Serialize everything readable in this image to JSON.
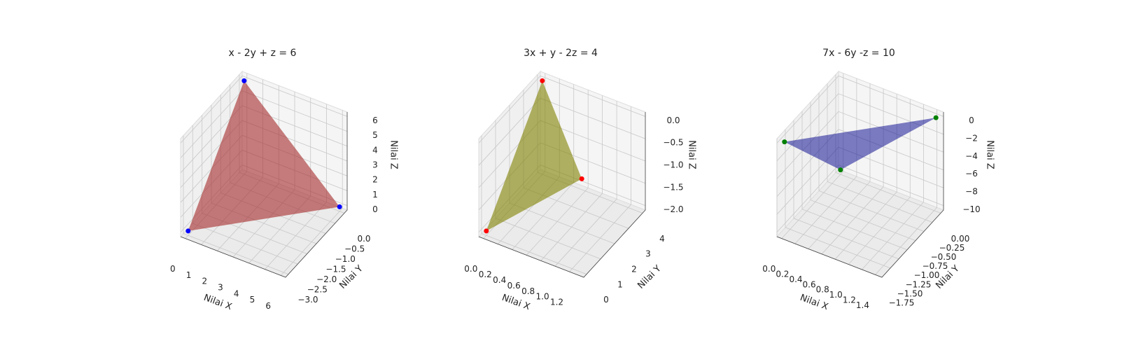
{
  "chart_data": [
    {
      "type": "plane3d",
      "title": "x - 2y + z = 6",
      "xlabel": "Nilai X",
      "ylabel": "Nilai Y",
      "zlabel": "Nilai Z",
      "x": [
        6,
        0,
        0
      ],
      "y": [
        0,
        -3,
        0
      ],
      "z": [
        0,
        0,
        6
      ],
      "color": "#a52a2a",
      "alpha": 0.6,
      "point_color": "blue",
      "xlim": [
        -0.3,
        6.3
      ],
      "ylim": [
        -3.15,
        0.15
      ],
      "zlim": [
        -0.3,
        6.3
      ],
      "xticks": [
        0,
        1,
        2,
        3,
        4,
        5,
        6
      ],
      "yticks": [
        {
          "value": 0,
          "label": "0.0"
        },
        {
          "value": -0.5,
          "label": "−0.5"
        },
        {
          "value": -1,
          "label": "−1.0"
        },
        {
          "value": -1.5,
          "label": "−1.5"
        },
        {
          "value": -2,
          "label": "−2.0"
        },
        {
          "value": -2.5,
          "label": "−2.5"
        },
        {
          "value": -3,
          "label": "−3.0"
        }
      ],
      "zticks": [
        0,
        1,
        2,
        3,
        4,
        5,
        6
      ],
      "grid": true
    },
    {
      "type": "plane3d",
      "title": "3x + y - 2z = 4",
      "xlabel": "Nilai X",
      "ylabel": "Nilai Y",
      "zlabel": "Nilai Z",
      "x": [
        1.3333,
        0,
        0
      ],
      "y": [
        0,
        4,
        0
      ],
      "z": [
        0,
        0,
        -2
      ],
      "color": "#808000",
      "alpha": 0.6,
      "point_color": "red",
      "xlim": [
        -0.0667,
        1.4
      ],
      "ylim": [
        -0.2,
        4.2
      ],
      "zlim": [
        -2.1,
        0.1
      ],
      "xticks": [
        {
          "value": 0,
          "label": "0.0"
        },
        0.2,
        0.4,
        0.6,
        0.8,
        {
          "value": 1,
          "label": "1.0"
        },
        1.2
      ],
      "yticks": [
        0,
        1,
        2,
        3,
        4
      ],
      "zticks": [
        {
          "value": 0,
          "label": "0.0"
        },
        {
          "value": -0.5,
          "label": "−0.5"
        },
        {
          "value": -1,
          "label": "−1.0"
        },
        {
          "value": -1.5,
          "label": "−1.5"
        },
        {
          "value": -2,
          "label": "−2.0"
        }
      ],
      "grid": true
    },
    {
      "type": "plane3d",
      "title": "7x - 6y -z = 10",
      "xlabel": "Nilai X",
      "ylabel": "Nilai Y",
      "zlabel": "Nilai Z",
      "x": [
        1.4286,
        0,
        0
      ],
      "y": [
        0,
        -1.6667,
        0
      ],
      "z": [
        0,
        0,
        -10
      ],
      "color": "#00008b",
      "alpha": 0.5,
      "point_color": "green",
      "xlim": [
        -0.0714,
        1.5
      ],
      "ylim": [
        -1.75,
        0.0833
      ],
      "zlim": [
        -10.5,
        0.5
      ],
      "xticks": [
        {
          "value": 0,
          "label": "0.0"
        },
        0.2,
        0.4,
        0.6,
        0.8,
        {
          "value": 1,
          "label": "1.0"
        },
        1.2,
        1.4
      ],
      "yticks": [
        {
          "value": 0,
          "label": "0.00"
        },
        {
          "value": -0.25,
          "label": "−0.25"
        },
        {
          "value": -0.5,
          "label": "−0.50"
        },
        {
          "value": -0.75,
          "label": "−0.75"
        },
        {
          "value": -1,
          "label": "−1.00"
        },
        {
          "value": -1.25,
          "label": "−1.25"
        },
        {
          "value": -1.5,
          "label": "−1.50"
        },
        {
          "value": -1.75,
          "label": "−1.75"
        }
      ],
      "zticks": [
        0,
        {
          "value": -2,
          "label": "−2"
        },
        {
          "value": -4,
          "label": "−4"
        },
        {
          "value": -6,
          "label": "−6"
        },
        {
          "value": -8,
          "label": "−8"
        },
        {
          "value": -10,
          "label": "−10"
        }
      ],
      "grid": true
    }
  ]
}
